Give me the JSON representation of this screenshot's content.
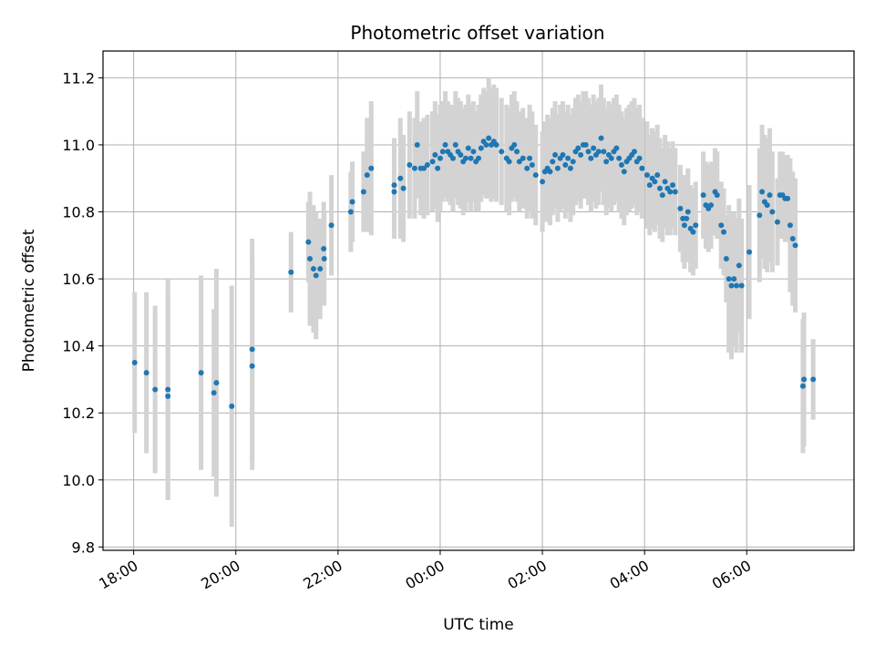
{
  "chart_data": {
    "type": "scatter",
    "title": "Photometric offset variation",
    "xlabel": "UTC time",
    "ylabel": "Photometric offset",
    "x_unit": "hours since 18:00 UTC",
    "xlim": [
      -0.6,
      14.1
    ],
    "ylim": [
      9.79,
      11.28
    ],
    "x_ticks": [
      {
        "value": 0,
        "label": "18:00"
      },
      {
        "value": 2,
        "label": "20:00"
      },
      {
        "value": 4,
        "label": "22:00"
      },
      {
        "value": 6,
        "label": "00:00"
      },
      {
        "value": 8,
        "label": "02:00"
      },
      {
        "value": 10,
        "label": "04:00"
      },
      {
        "value": 12,
        "label": "06:00"
      }
    ],
    "y_ticks": [
      9.8,
      10.0,
      10.2,
      10.4,
      10.6,
      10.8,
      11.0,
      11.2
    ],
    "grid": true,
    "colors": {
      "points": "#1f77b4",
      "errorbars": "#d3d3d3",
      "grid": "#b0b0b0"
    },
    "series": [
      {
        "points": [
          [
            0.02,
            10.35,
            0.21
          ],
          [
            0.25,
            10.32,
            0.24
          ],
          [
            0.42,
            10.27,
            0.25
          ],
          [
            0.67,
            10.27,
            0.33
          ],
          [
            0.67,
            10.25,
            0.31
          ],
          [
            1.32,
            10.32,
            0.29
          ],
          [
            1.57,
            10.26,
            0.25
          ],
          [
            1.62,
            10.29,
            0.34
          ],
          [
            1.92,
            10.22,
            0.36
          ],
          [
            2.32,
            10.39,
            0.33
          ],
          [
            2.32,
            10.34,
            0.31
          ],
          [
            3.08,
            10.62,
            0.12
          ],
          [
            3.42,
            10.71,
            0.12
          ],
          [
            3.45,
            10.66,
            0.2
          ],
          [
            3.52,
            10.63,
            0.19
          ],
          [
            3.57,
            10.61,
            0.19
          ],
          [
            3.65,
            10.63,
            0.15
          ],
          [
            3.72,
            10.69,
            0.14
          ],
          [
            3.73,
            10.66,
            0.14
          ],
          [
            3.87,
            10.76,
            0.15
          ],
          [
            4.25,
            10.8,
            0.12
          ],
          [
            4.28,
            10.83,
            0.12
          ],
          [
            4.5,
            10.86,
            0.12
          ],
          [
            4.57,
            10.91,
            0.17
          ],
          [
            4.65,
            10.93,
            0.2
          ],
          [
            5.1,
            10.88,
            0.14
          ],
          [
            5.1,
            10.86,
            0.14
          ],
          [
            5.22,
            10.9,
            0.18
          ],
          [
            5.28,
            10.87,
            0.16
          ],
          [
            5.4,
            10.94,
            0.16
          ],
          [
            5.5,
            10.93,
            0.15
          ],
          [
            5.55,
            11.0,
            0.16
          ],
          [
            5.62,
            10.93,
            0.14
          ],
          [
            5.68,
            10.93,
            0.15
          ],
          [
            5.75,
            10.94,
            0.15
          ],
          [
            5.85,
            10.95,
            0.15
          ],
          [
            5.9,
            10.97,
            0.16
          ],
          [
            5.95,
            10.93,
            0.16
          ],
          [
            6.0,
            10.96,
            0.16
          ],
          [
            6.05,
            10.98,
            0.15
          ],
          [
            6.1,
            11.0,
            0.16
          ],
          [
            6.15,
            10.98,
            0.15
          ],
          [
            6.2,
            10.97,
            0.15
          ],
          [
            6.25,
            10.96,
            0.16
          ],
          [
            6.3,
            11.0,
            0.16
          ],
          [
            6.35,
            10.98,
            0.16
          ],
          [
            6.4,
            10.97,
            0.16
          ],
          [
            6.45,
            10.95,
            0.16
          ],
          [
            6.5,
            10.96,
            0.16
          ],
          [
            6.55,
            10.99,
            0.16
          ],
          [
            6.6,
            10.96,
            0.16
          ],
          [
            6.65,
            10.98,
            0.15
          ],
          [
            6.7,
            10.95,
            0.15
          ],
          [
            6.75,
            10.96,
            0.16
          ],
          [
            6.8,
            10.99,
            0.16
          ],
          [
            6.85,
            11.01,
            0.16
          ],
          [
            6.9,
            11.0,
            0.16
          ],
          [
            6.95,
            11.02,
            0.18
          ],
          [
            7.0,
            11.0,
            0.17
          ],
          [
            7.05,
            11.01,
            0.17
          ],
          [
            7.1,
            11.0,
            0.17
          ],
          [
            7.2,
            10.98,
            0.16
          ],
          [
            7.3,
            10.96,
            0.16
          ],
          [
            7.35,
            10.95,
            0.16
          ],
          [
            7.4,
            10.99,
            0.16
          ],
          [
            7.45,
            11.0,
            0.16
          ],
          [
            7.5,
            10.98,
            0.15
          ],
          [
            7.55,
            10.95,
            0.15
          ],
          [
            7.62,
            10.96,
            0.15
          ],
          [
            7.7,
            10.93,
            0.15
          ],
          [
            7.75,
            10.96,
            0.16
          ],
          [
            7.8,
            10.94,
            0.16
          ],
          [
            7.87,
            10.91,
            0.15
          ],
          [
            8.0,
            10.89,
            0.15
          ],
          [
            8.05,
            10.92,
            0.15
          ],
          [
            8.1,
            10.93,
            0.16
          ],
          [
            8.15,
            10.92,
            0.16
          ],
          [
            8.2,
            10.95,
            0.16
          ],
          [
            8.25,
            10.97,
            0.16
          ],
          [
            8.3,
            10.93,
            0.16
          ],
          [
            8.35,
            10.96,
            0.16
          ],
          [
            8.4,
            10.97,
            0.16
          ],
          [
            8.45,
            10.94,
            0.16
          ],
          [
            8.5,
            10.96,
            0.16
          ],
          [
            8.55,
            10.93,
            0.16
          ],
          [
            8.6,
            10.95,
            0.16
          ],
          [
            8.65,
            10.98,
            0.16
          ],
          [
            8.7,
            10.99,
            0.16
          ],
          [
            8.75,
            10.97,
            0.16
          ],
          [
            8.8,
            11.0,
            0.16
          ],
          [
            8.85,
            11.0,
            0.16
          ],
          [
            8.9,
            10.98,
            0.16
          ],
          [
            8.95,
            10.96,
            0.16
          ],
          [
            9.0,
            10.99,
            0.16
          ],
          [
            9.05,
            10.97,
            0.16
          ],
          [
            9.1,
            10.98,
            0.16
          ],
          [
            9.15,
            11.02,
            0.16
          ],
          [
            9.2,
            10.98,
            0.16
          ],
          [
            9.25,
            10.95,
            0.16
          ],
          [
            9.3,
            10.97,
            0.16
          ],
          [
            9.35,
            10.96,
            0.16
          ],
          [
            9.4,
            10.98,
            0.16
          ],
          [
            9.45,
            10.99,
            0.16
          ],
          [
            9.5,
            10.96,
            0.16
          ],
          [
            9.55,
            10.94,
            0.16
          ],
          [
            9.6,
            10.92,
            0.16
          ],
          [
            9.65,
            10.95,
            0.16
          ],
          [
            9.7,
            10.96,
            0.16
          ],
          [
            9.75,
            10.97,
            0.16
          ],
          [
            9.8,
            10.98,
            0.16
          ],
          [
            9.85,
            10.95,
            0.16
          ],
          [
            9.9,
            10.96,
            0.16
          ],
          [
            9.95,
            10.93,
            0.15
          ],
          [
            10.05,
            10.91,
            0.16
          ],
          [
            10.1,
            10.88,
            0.15
          ],
          [
            10.15,
            10.9,
            0.15
          ],
          [
            10.2,
            10.89,
            0.15
          ],
          [
            10.25,
            10.91,
            0.15
          ],
          [
            10.3,
            10.87,
            0.15
          ],
          [
            10.35,
            10.85,
            0.14
          ],
          [
            10.4,
            10.89,
            0.14
          ],
          [
            10.45,
            10.87,
            0.14
          ],
          [
            10.5,
            10.86,
            0.13
          ],
          [
            10.55,
            10.88,
            0.13
          ],
          [
            10.6,
            10.86,
            0.13
          ],
          [
            10.7,
            10.81,
            0.13
          ],
          [
            10.75,
            10.78,
            0.13
          ],
          [
            10.78,
            10.76,
            0.13
          ],
          [
            10.82,
            10.78,
            0.13
          ],
          [
            10.85,
            10.8,
            0.13
          ],
          [
            10.9,
            10.75,
            0.13
          ],
          [
            10.95,
            10.74,
            0.13
          ],
          [
            11.0,
            10.76,
            0.13
          ],
          [
            11.15,
            10.85,
            0.13
          ],
          [
            11.2,
            10.82,
            0.13
          ],
          [
            11.25,
            10.81,
            0.13
          ],
          [
            11.3,
            10.82,
            0.13
          ],
          [
            11.38,
            10.86,
            0.13
          ],
          [
            11.42,
            10.85,
            0.13
          ],
          [
            11.5,
            10.76,
            0.13
          ],
          [
            11.55,
            10.74,
            0.13
          ],
          [
            11.6,
            10.66,
            0.13
          ],
          [
            11.65,
            10.6,
            0.22
          ],
          [
            11.7,
            10.58,
            0.22
          ],
          [
            11.75,
            10.6,
            0.2
          ],
          [
            11.8,
            10.58,
            0.2
          ],
          [
            11.85,
            10.64,
            0.2
          ],
          [
            11.9,
            10.58,
            0.2
          ],
          [
            12.05,
            10.68,
            0.2
          ],
          [
            12.25,
            10.79,
            0.2
          ],
          [
            12.3,
            10.86,
            0.2
          ],
          [
            12.35,
            10.83,
            0.2
          ],
          [
            12.4,
            10.82,
            0.2
          ],
          [
            12.45,
            10.85,
            0.2
          ],
          [
            12.5,
            10.8,
            0.18
          ],
          [
            12.6,
            10.77,
            0.13
          ],
          [
            12.65,
            10.85,
            0.13
          ],
          [
            12.7,
            10.85,
            0.13
          ],
          [
            12.75,
            10.84,
            0.13
          ],
          [
            12.8,
            10.84,
            0.13
          ],
          [
            12.85,
            10.76,
            0.2
          ],
          [
            12.9,
            10.72,
            0.2
          ],
          [
            12.95,
            10.7,
            0.2
          ],
          [
            13.1,
            10.28,
            0.2
          ],
          [
            13.12,
            10.3,
            0.2
          ],
          [
            13.3,
            10.3,
            0.12
          ]
        ]
      }
    ]
  }
}
